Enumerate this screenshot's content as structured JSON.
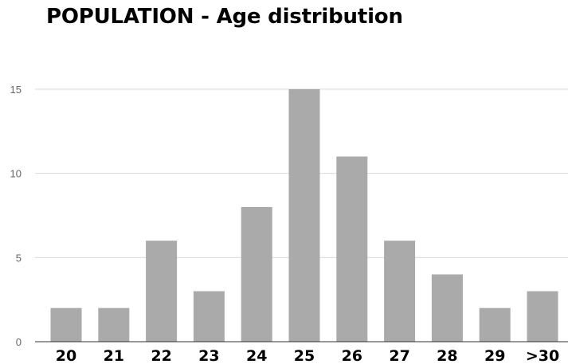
{
  "chart_data": {
    "type": "bar",
    "title": "POPULATION - Age distribution",
    "xlabel": "",
    "ylabel": "",
    "categories": [
      "20",
      "21",
      "22",
      "23",
      "24",
      "25",
      "26",
      "27",
      "28",
      "29",
      ">30"
    ],
    "values": [
      2,
      2,
      6,
      3,
      8,
      15,
      11,
      6,
      4,
      2,
      3
    ],
    "ylim": [
      0,
      15
    ],
    "yticks": [
      "0",
      "5",
      "10",
      "15"
    ],
    "grid": true,
    "legend": "none",
    "colors": {
      "bar": "#aaaaaa",
      "grid": "#d9d9d9",
      "axis": "#333333"
    }
  }
}
